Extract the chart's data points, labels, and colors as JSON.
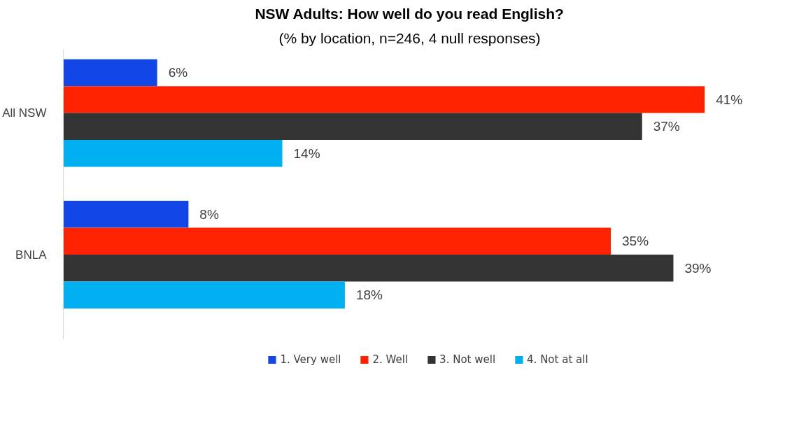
{
  "chart_data": {
    "type": "bar",
    "orientation": "horizontal",
    "title": "NSW Adults: How well do you read English?",
    "subtitle": "(% by location, n=246, 4 null responses)",
    "categories": [
      "All NSW",
      "BNLA"
    ],
    "series": [
      {
        "name": "1. Very well",
        "color": "#1346e6",
        "values": [
          6,
          8
        ],
        "value_labels": [
          "6%",
          "8%"
        ]
      },
      {
        "name": "2. Well",
        "color": "#ff2200",
        "values": [
          41,
          35
        ],
        "value_labels": [
          "41%",
          "35%"
        ]
      },
      {
        "name": "3. Not well",
        "color": "#333333",
        "values": [
          37,
          39
        ],
        "value_labels": [
          "37%",
          "39%"
        ]
      },
      {
        "name": "4. Not at all",
        "color": "#00b0f0",
        "values": [
          14,
          18
        ],
        "value_labels": [
          "14%",
          "18%"
        ]
      }
    ],
    "legend": "bottom",
    "tick_labels": "y"
  }
}
